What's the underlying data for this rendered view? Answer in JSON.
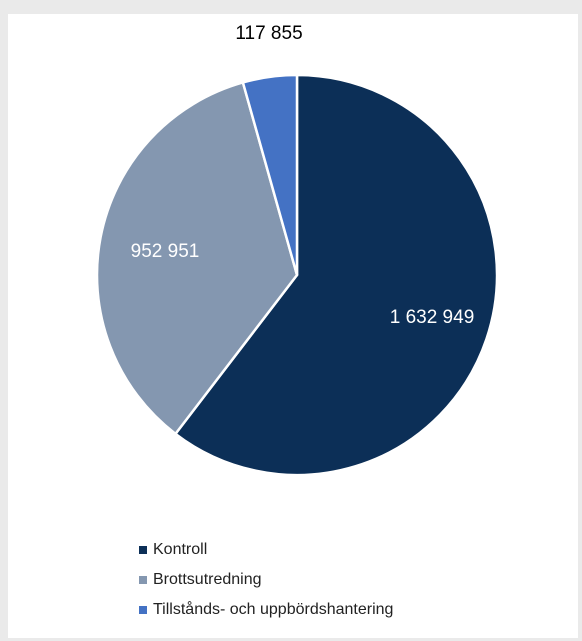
{
  "chart_data": {
    "type": "pie",
    "title": "",
    "series": [
      {
        "values": [
          1632949,
          952951,
          117855
        ]
      }
    ],
    "slices": [
      {
        "label": "Kontroll",
        "value": 1632949,
        "display_value": "1 632 949",
        "color": "#0c2f57",
        "label_color": "#ffffff"
      },
      {
        "label": "Brottsutredning",
        "value": 952951,
        "display_value": "952 951",
        "color": "#8497b0",
        "label_color": "#ffffff"
      },
      {
        "label": "Tillstånds- och uppbördshantering",
        "value": 117855,
        "display_value": "117 855",
        "color": "#4472c4",
        "label_color": "#000000"
      }
    ],
    "legend_position": "bottom",
    "start_angle": "12 o'clock",
    "direction": "clockwise"
  }
}
